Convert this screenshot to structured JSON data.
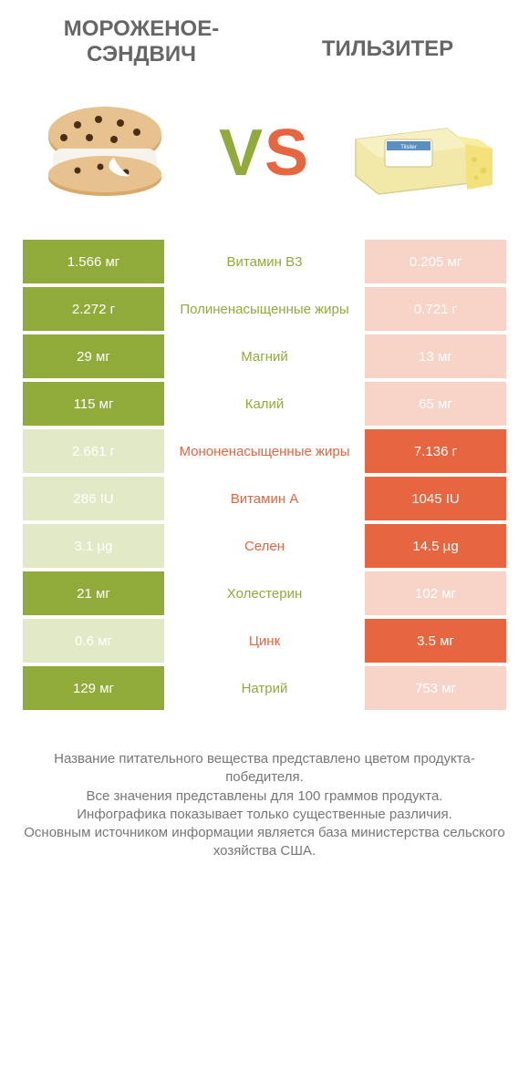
{
  "colors": {
    "green": "#91ab3a",
    "orange": "#e7653f",
    "lightgreen": "#e2e9c6",
    "lightorange": "#f8d3c8",
    "text": "#555555",
    "footer_text": "#777777",
    "background": "#ffffff"
  },
  "typography": {
    "header_fontsize": 24,
    "vs_fontsize": 72,
    "cell_fontsize": 15,
    "footer_fontsize": 15
  },
  "header": {
    "left_title": "МОРОЖЕНОЕ-СЭНДВИЧ",
    "right_title": "ТИЛЬЗИТЕР"
  },
  "vs": {
    "v": "V",
    "s": "S"
  },
  "rows": [
    {
      "left": "1.566 мг",
      "mid": "Витамин B3",
      "right": "0.205 мг",
      "winner": "left"
    },
    {
      "left": "2.272 г",
      "mid": "Полиненасыщенные жиры",
      "right": "0.721 г",
      "winner": "left"
    },
    {
      "left": "29 мг",
      "mid": "Магний",
      "right": "13 мг",
      "winner": "left"
    },
    {
      "left": "115 мг",
      "mid": "Калий",
      "right": "65 мг",
      "winner": "left"
    },
    {
      "left": "2.661 г",
      "mid": "Мононенасыщенные жиры",
      "right": "7.136 г",
      "winner": "right"
    },
    {
      "left": "286 IU",
      "mid": "Витамин A",
      "right": "1045 IU",
      "winner": "right"
    },
    {
      "left": "3.1 µg",
      "mid": "Селен",
      "right": "14.5 µg",
      "winner": "right"
    },
    {
      "left": "21 мг",
      "mid": "Холестерин",
      "right": "102 мг",
      "winner": "left"
    },
    {
      "left": "0.6 мг",
      "mid": "Цинк",
      "right": "3.5 мг",
      "winner": "right"
    },
    {
      "left": "129 мг",
      "mid": "Натрий",
      "right": "753 мг",
      "winner": "left"
    }
  ],
  "footer": {
    "line1": "Название питательного вещества представлено цветом продукта-победителя.",
    "line2": "Все значения представлены для 100 граммов продукта.",
    "line3": "Инфографика показывает только существенные различия.",
    "line4": "Основным источником информации является база министерства сельского хозяйства США."
  }
}
